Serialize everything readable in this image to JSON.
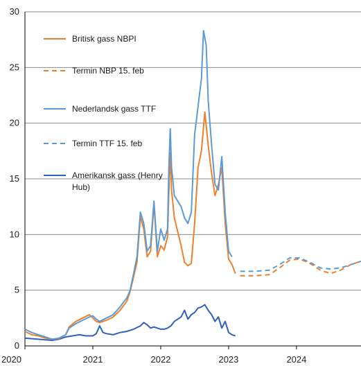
{
  "chart_data": {
    "type": "line",
    "title": "",
    "xlabel": "",
    "ylabel": "",
    "xlim": [
      2020.0,
      2024.95
    ],
    "ylim": [
      0,
      30
    ],
    "yticks": [
      0,
      5,
      10,
      15,
      20,
      25,
      30
    ],
    "xticks": [
      2020,
      2021,
      2022,
      2023,
      2024
    ],
    "grid": "horizontal",
    "legend_position": "top-left",
    "series": [
      {
        "name": "Britisk gass NBPI",
        "color": "#f07f2a",
        "style": "solid",
        "points": [
          [
            2020.0,
            1.3
          ],
          [
            2020.1,
            1.0
          ],
          [
            2020.2,
            0.9
          ],
          [
            2020.3,
            0.7
          ],
          [
            2020.4,
            0.6
          ],
          [
            2020.5,
            0.65
          ],
          [
            2020.6,
            1.0
          ],
          [
            2020.65,
            1.7
          ],
          [
            2020.75,
            2.2
          ],
          [
            2020.85,
            2.5
          ],
          [
            2020.95,
            2.8
          ],
          [
            2021.0,
            2.5
          ],
          [
            2021.05,
            2.2
          ],
          [
            2021.1,
            2.1
          ],
          [
            2021.2,
            2.3
          ],
          [
            2021.3,
            2.6
          ],
          [
            2021.4,
            3.2
          ],
          [
            2021.5,
            4.0
          ],
          [
            2021.55,
            4.9
          ],
          [
            2021.6,
            6.2
          ],
          [
            2021.65,
            7.5
          ],
          [
            2021.7,
            11.6
          ],
          [
            2021.75,
            10.5
          ],
          [
            2021.8,
            8.0
          ],
          [
            2021.85,
            8.5
          ],
          [
            2021.9,
            12.7
          ],
          [
            2021.95,
            8.0
          ],
          [
            2022.0,
            9.0
          ],
          [
            2022.05,
            8.6
          ],
          [
            2022.1,
            9.8
          ],
          [
            2022.12,
            13.8
          ],
          [
            2022.14,
            17.3
          ],
          [
            2022.16,
            14.0
          ],
          [
            2022.2,
            11.5
          ],
          [
            2022.3,
            9.0
          ],
          [
            2022.35,
            7.5
          ],
          [
            2022.4,
            7.2
          ],
          [
            2022.45,
            7.4
          ],
          [
            2022.5,
            11.0
          ],
          [
            2022.55,
            16.0
          ],
          [
            2022.6,
            17.5
          ],
          [
            2022.65,
            21.0
          ],
          [
            2022.7,
            18.0
          ],
          [
            2022.75,
            15.5
          ],
          [
            2022.8,
            13.5
          ],
          [
            2022.85,
            14.5
          ],
          [
            2022.9,
            16.0
          ],
          [
            2022.95,
            11.0
          ],
          [
            2023.0,
            7.8
          ],
          [
            2023.05,
            7.3
          ],
          [
            2023.1,
            6.5
          ]
        ]
      },
      {
        "name": "Termin NBP 15. feb",
        "color": "#f07f2a",
        "style": "dashed",
        "points": [
          [
            2023.17,
            6.3
          ],
          [
            2023.4,
            6.3
          ],
          [
            2023.6,
            6.4
          ],
          [
            2023.75,
            7.0
          ],
          [
            2023.9,
            7.7
          ],
          [
            2024.05,
            7.8
          ],
          [
            2024.2,
            7.4
          ],
          [
            2024.35,
            6.8
          ],
          [
            2024.5,
            6.5
          ],
          [
            2024.65,
            6.8
          ],
          [
            2024.8,
            7.3
          ],
          [
            2024.95,
            7.6
          ]
        ]
      },
      {
        "name": "Nederlandsk gass TTF",
        "color": "#5b9bd5",
        "style": "solid",
        "points": [
          [
            2020.0,
            1.5
          ],
          [
            2020.1,
            1.2
          ],
          [
            2020.2,
            1.0
          ],
          [
            2020.3,
            0.8
          ],
          [
            2020.4,
            0.6
          ],
          [
            2020.5,
            0.7
          ],
          [
            2020.6,
            1.0
          ],
          [
            2020.65,
            1.6
          ],
          [
            2020.75,
            2.0
          ],
          [
            2020.85,
            2.3
          ],
          [
            2020.95,
            2.6
          ],
          [
            2021.0,
            2.7
          ],
          [
            2021.05,
            2.4
          ],
          [
            2021.1,
            2.2
          ],
          [
            2021.2,
            2.5
          ],
          [
            2021.3,
            2.8
          ],
          [
            2021.4,
            3.5
          ],
          [
            2021.5,
            4.3
          ],
          [
            2021.55,
            5.0
          ],
          [
            2021.6,
            6.5
          ],
          [
            2021.65,
            8.0
          ],
          [
            2021.7,
            12.0
          ],
          [
            2021.75,
            11.0
          ],
          [
            2021.8,
            8.5
          ],
          [
            2021.85,
            9.0
          ],
          [
            2021.9,
            13.0
          ],
          [
            2021.95,
            8.5
          ],
          [
            2022.0,
            10.5
          ],
          [
            2022.05,
            9.5
          ],
          [
            2022.1,
            10.5
          ],
          [
            2022.12,
            16.0
          ],
          [
            2022.14,
            19.5
          ],
          [
            2022.16,
            16.0
          ],
          [
            2022.2,
            13.5
          ],
          [
            2022.3,
            12.5
          ],
          [
            2022.35,
            11.5
          ],
          [
            2022.4,
            11.0
          ],
          [
            2022.45,
            12.0
          ],
          [
            2022.5,
            19.0
          ],
          [
            2022.53,
            20.5
          ],
          [
            2022.56,
            22.0
          ],
          [
            2022.6,
            24.0
          ],
          [
            2022.63,
            28.3
          ],
          [
            2022.67,
            27.0
          ],
          [
            2022.7,
            22.0
          ],
          [
            2022.75,
            18.0
          ],
          [
            2022.8,
            14.5
          ],
          [
            2022.85,
            14.0
          ],
          [
            2022.9,
            17.0
          ],
          [
            2022.95,
            12.0
          ],
          [
            2023.0,
            8.5
          ],
          [
            2023.05,
            8.0
          ]
        ]
      },
      {
        "name": "Termin TTF 15. feb",
        "color": "#5b9bd5",
        "style": "dashed",
        "points": [
          [
            2023.17,
            6.7
          ],
          [
            2023.4,
            6.7
          ],
          [
            2023.6,
            6.8
          ],
          [
            2023.75,
            7.3
          ],
          [
            2023.9,
            7.9
          ],
          [
            2024.05,
            7.9
          ],
          [
            2024.2,
            7.5
          ],
          [
            2024.35,
            7.0
          ],
          [
            2024.5,
            6.9
          ],
          [
            2024.65,
            7.0
          ],
          [
            2024.8,
            7.3
          ],
          [
            2024.95,
            7.6
          ]
        ]
      },
      {
        "name": "Amerikansk gass (Henry Hub)",
        "color": "#2e5fbf",
        "style": "solid",
        "points": [
          [
            2020.0,
            0.7
          ],
          [
            2020.1,
            0.65
          ],
          [
            2020.2,
            0.6
          ],
          [
            2020.3,
            0.55
          ],
          [
            2020.4,
            0.5
          ],
          [
            2020.5,
            0.6
          ],
          [
            2020.6,
            0.8
          ],
          [
            2020.7,
            0.9
          ],
          [
            2020.8,
            1.0
          ],
          [
            2020.9,
            0.9
          ],
          [
            2021.0,
            0.9
          ],
          [
            2021.05,
            1.1
          ],
          [
            2021.1,
            1.8
          ],
          [
            2021.15,
            1.2
          ],
          [
            2021.2,
            1.1
          ],
          [
            2021.3,
            1.0
          ],
          [
            2021.4,
            1.2
          ],
          [
            2021.5,
            1.3
          ],
          [
            2021.6,
            1.5
          ],
          [
            2021.7,
            1.8
          ],
          [
            2021.75,
            2.1
          ],
          [
            2021.8,
            1.9
          ],
          [
            2021.85,
            1.6
          ],
          [
            2021.9,
            1.7
          ],
          [
            2022.0,
            1.5
          ],
          [
            2022.05,
            1.5
          ],
          [
            2022.1,
            1.6
          ],
          [
            2022.15,
            1.8
          ],
          [
            2022.2,
            2.2
          ],
          [
            2022.3,
            2.6
          ],
          [
            2022.35,
            3.2
          ],
          [
            2022.4,
            2.4
          ],
          [
            2022.45,
            2.8
          ],
          [
            2022.5,
            3.0
          ],
          [
            2022.55,
            3.4
          ],
          [
            2022.6,
            3.5
          ],
          [
            2022.65,
            3.7
          ],
          [
            2022.7,
            3.2
          ],
          [
            2022.75,
            2.8
          ],
          [
            2022.8,
            2.2
          ],
          [
            2022.85,
            2.6
          ],
          [
            2022.9,
            1.6
          ],
          [
            2022.95,
            2.2
          ],
          [
            2023.0,
            1.2
          ],
          [
            2023.05,
            1.0
          ],
          [
            2023.1,
            0.9
          ]
        ]
      }
    ]
  },
  "legend": [
    {
      "label": "Britisk gass NBPI",
      "color": "#f07f2a",
      "style": "solid"
    },
    {
      "label": "Termin NBP 15. feb",
      "color": "#f07f2a",
      "style": "dashed"
    },
    {
      "label": "Nederlandsk gass TTF",
      "color": "#5b9bd5",
      "style": "solid"
    },
    {
      "label": "Termin TTF 15. feb",
      "color": "#5b9bd5",
      "style": "dashed"
    },
    {
      "label": "Amerikansk gass (Henry Hub)",
      "color": "#2e5fbf",
      "style": "solid"
    }
  ],
  "y_tick_labels": [
    "0",
    "5",
    "10",
    "15",
    "20",
    "25",
    "30"
  ],
  "x_tick_labels": [
    "2020",
    "2021",
    "2022",
    "2023",
    "2024"
  ]
}
